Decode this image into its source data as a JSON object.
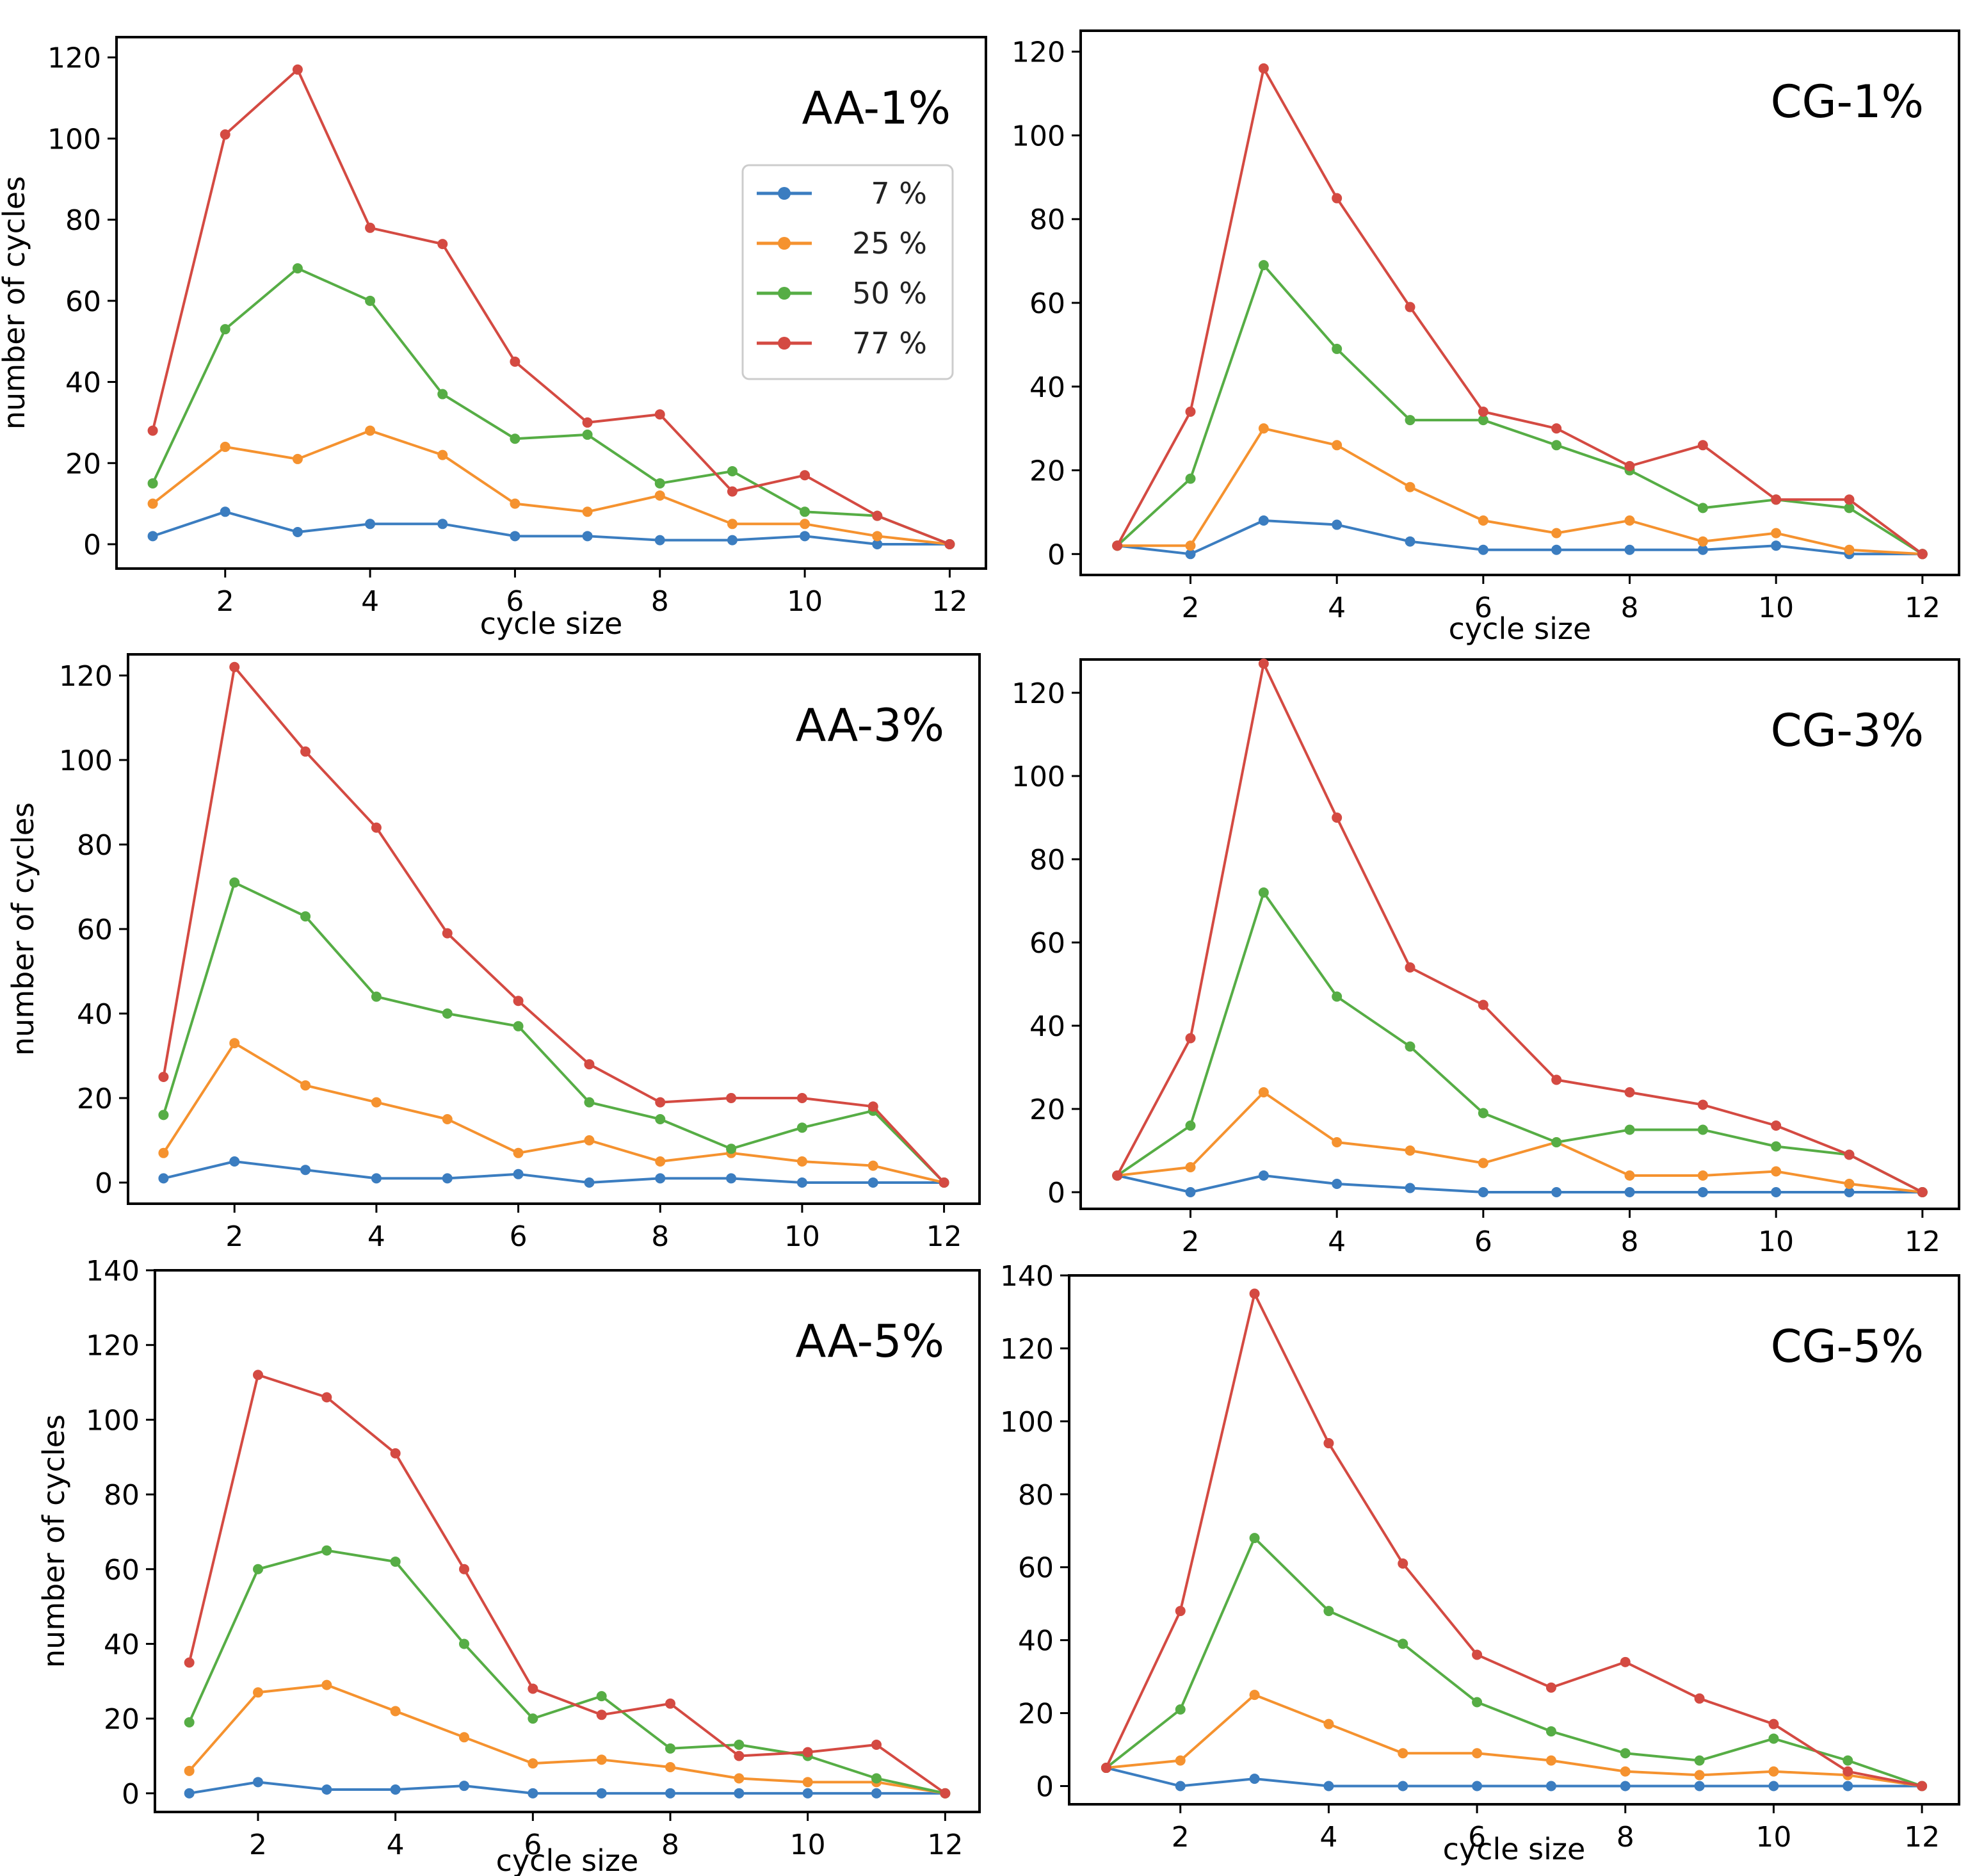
{
  "colors": {
    "s7": "#3b7dc0",
    "s25": "#f5922f",
    "s50": "#56ad45",
    "s77": "#d44a42"
  },
  "legend": {
    "entries": [
      {
        "name": "7 %",
        "color_key": "s7"
      },
      {
        "name": "25 %",
        "color_key": "s25"
      },
      {
        "name": "50 %",
        "color_key": "s50"
      },
      {
        "name": "77 %",
        "color_key": "s77"
      }
    ]
  },
  "chart_data": [
    {
      "type": "line",
      "title": "AA-1%",
      "xlabel": "cycle size",
      "ylabel": "number of cycles",
      "x": [
        1,
        2,
        3,
        4,
        5,
        6,
        7,
        8,
        9,
        10,
        11,
        12
      ],
      "xlim": [
        0.5,
        12.5
      ],
      "ylim": [
        -6,
        125
      ],
      "xticks": [
        2,
        4,
        6,
        8,
        10,
        12
      ],
      "yticks": [
        0,
        20,
        40,
        60,
        80,
        100,
        120
      ],
      "legend": "top-right",
      "series": [
        {
          "name": "7 %",
          "values": [
            2,
            8,
            3,
            5,
            5,
            2,
            2,
            1,
            1,
            2,
            0,
            0
          ]
        },
        {
          "name": "25 %",
          "values": [
            10,
            24,
            21,
            28,
            22,
            10,
            8,
            12,
            5,
            5,
            2,
            0
          ]
        },
        {
          "name": "50 %",
          "values": [
            15,
            53,
            68,
            60,
            37,
            26,
            27,
            15,
            18,
            8,
            7,
            0
          ]
        },
        {
          "name": "77 %",
          "values": [
            28,
            101,
            117,
            78,
            74,
            45,
            30,
            32,
            13,
            17,
            7,
            0
          ]
        }
      ]
    },
    {
      "type": "line",
      "title": "CG-1%",
      "xlabel": "cycle size",
      "ylabel": "",
      "x": [
        1,
        2,
        3,
        4,
        5,
        6,
        7,
        8,
        9,
        10,
        11,
        12
      ],
      "xlim": [
        0.5,
        12.5
      ],
      "ylim": [
        -5,
        125
      ],
      "xticks": [
        2,
        4,
        6,
        8,
        10,
        12
      ],
      "yticks": [
        0,
        20,
        40,
        60,
        80,
        100,
        120
      ],
      "series": [
        {
          "name": "7 %",
          "values": [
            2,
            0,
            8,
            7,
            3,
            1,
            1,
            1,
            1,
            2,
            0,
            0
          ]
        },
        {
          "name": "25 %",
          "values": [
            2,
            2,
            30,
            26,
            16,
            8,
            5,
            8,
            3,
            5,
            1,
            0
          ]
        },
        {
          "name": "50 %",
          "values": [
            2,
            18,
            69,
            49,
            32,
            32,
            26,
            20,
            11,
            13,
            11,
            0
          ]
        },
        {
          "name": "77 %",
          "values": [
            2,
            34,
            116,
            85,
            59,
            34,
            30,
            21,
            26,
            13,
            13,
            0
          ]
        }
      ]
    },
    {
      "type": "line",
      "title": "AA-3%",
      "xlabel": "",
      "ylabel": "number of cycles",
      "x": [
        1,
        2,
        3,
        4,
        5,
        6,
        7,
        8,
        9,
        10,
        11,
        12
      ],
      "xlim": [
        0.5,
        12.5
      ],
      "ylim": [
        -5,
        125
      ],
      "xticks": [
        2,
        4,
        6,
        8,
        10,
        12
      ],
      "yticks": [
        0,
        20,
        40,
        60,
        80,
        100,
        120
      ],
      "series": [
        {
          "name": "7 %",
          "values": [
            1,
            5,
            3,
            1,
            1,
            2,
            0,
            1,
            1,
            0,
            0,
            0
          ]
        },
        {
          "name": "25 %",
          "values": [
            7,
            33,
            23,
            19,
            15,
            7,
            10,
            5,
            7,
            5,
            4,
            0
          ]
        },
        {
          "name": "50 %",
          "values": [
            16,
            71,
            63,
            44,
            40,
            37,
            19,
            15,
            8,
            13,
            17,
            0
          ]
        },
        {
          "name": "77 %",
          "values": [
            25,
            122,
            102,
            84,
            59,
            43,
            28,
            19,
            20,
            20,
            18,
            0
          ]
        }
      ]
    },
    {
      "type": "line",
      "title": "CG-3%",
      "xlabel": "",
      "ylabel": "",
      "x": [
        1,
        2,
        3,
        4,
        5,
        6,
        7,
        8,
        9,
        10,
        11,
        12
      ],
      "xlim": [
        0.5,
        12.5
      ],
      "ylim": [
        -4,
        128
      ],
      "xticks": [
        2,
        4,
        6,
        8,
        10,
        12
      ],
      "yticks": [
        0,
        20,
        40,
        60,
        80,
        100,
        120
      ],
      "series": [
        {
          "name": "7 %",
          "values": [
            4,
            0,
            4,
            2,
            1,
            0,
            0,
            0,
            0,
            0,
            0,
            0
          ]
        },
        {
          "name": "25 %",
          "values": [
            4,
            6,
            24,
            12,
            10,
            7,
            12,
            4,
            4,
            5,
            2,
            0
          ]
        },
        {
          "name": "50 %",
          "values": [
            4,
            16,
            72,
            47,
            35,
            19,
            12,
            15,
            15,
            11,
            9,
            0
          ]
        },
        {
          "name": "77 %",
          "values": [
            4,
            37,
            127,
            90,
            54,
            45,
            27,
            24,
            21,
            16,
            9,
            0
          ]
        }
      ]
    },
    {
      "type": "line",
      "title": "AA-5%",
      "xlabel": "cycle size",
      "ylabel": "number of cycles",
      "x": [
        1,
        2,
        3,
        4,
        5,
        6,
        7,
        8,
        9,
        10,
        11,
        12
      ],
      "xlim": [
        0.5,
        12.5
      ],
      "ylim": [
        -5,
        140
      ],
      "xticks": [
        2,
        4,
        6,
        8,
        10,
        12
      ],
      "yticks": [
        0,
        20,
        40,
        60,
        80,
        100,
        120,
        140
      ],
      "series": [
        {
          "name": "7 %",
          "values": [
            0,
            3,
            1,
            1,
            2,
            0,
            0,
            0,
            0,
            0,
            0,
            0
          ]
        },
        {
          "name": "25 %",
          "values": [
            6,
            27,
            29,
            22,
            15,
            8,
            9,
            7,
            4,
            3,
            3,
            0
          ]
        },
        {
          "name": "50 %",
          "values": [
            19,
            60,
            65,
            62,
            40,
            20,
            26,
            12,
            13,
            10,
            4,
            0
          ]
        },
        {
          "name": "77 %",
          "values": [
            35,
            112,
            106,
            91,
            60,
            28,
            21,
            24,
            10,
            11,
            13,
            0
          ]
        }
      ]
    },
    {
      "type": "line",
      "title": "CG-5%",
      "xlabel": "cycle size",
      "ylabel": "",
      "x": [
        1,
        2,
        3,
        4,
        5,
        6,
        7,
        8,
        9,
        10,
        11,
        12
      ],
      "xlim": [
        0.5,
        12.5
      ],
      "ylim": [
        -5,
        140
      ],
      "xticks": [
        2,
        4,
        6,
        8,
        10,
        12
      ],
      "yticks": [
        0,
        20,
        40,
        60,
        80,
        100,
        120,
        140
      ],
      "series": [
        {
          "name": "7 %",
          "values": [
            5,
            0,
            2,
            0,
            0,
            0,
            0,
            0,
            0,
            0,
            0,
            0
          ]
        },
        {
          "name": "25 %",
          "values": [
            5,
            7,
            25,
            17,
            9,
            9,
            7,
            4,
            3,
            4,
            3,
            0
          ]
        },
        {
          "name": "50 %",
          "values": [
            5,
            21,
            68,
            48,
            39,
            23,
            15,
            9,
            7,
            13,
            7,
            0
          ]
        },
        {
          "name": "77 %",
          "values": [
            5,
            48,
            135,
            94,
            61,
            36,
            27,
            34,
            24,
            17,
            4,
            0
          ]
        }
      ]
    }
  ]
}
